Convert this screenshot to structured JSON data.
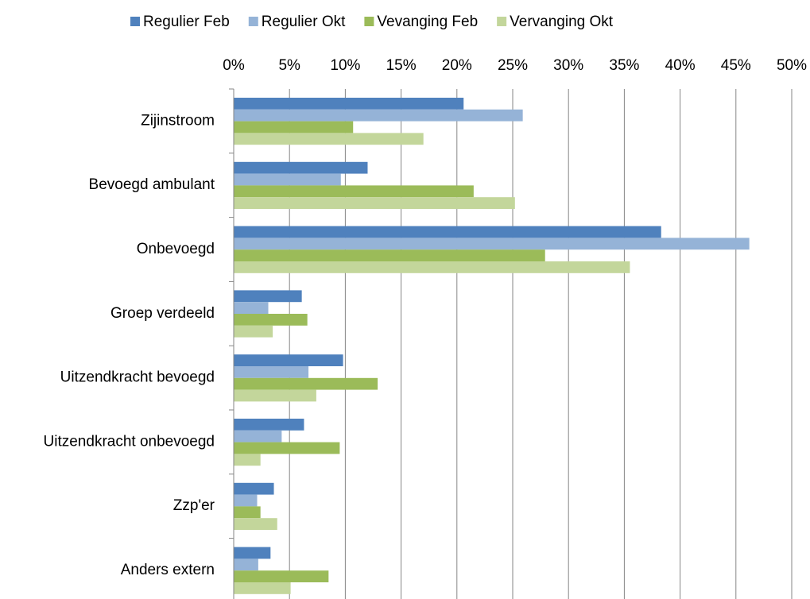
{
  "chart_data": {
    "type": "hbar",
    "categories": [
      "Zijinstroom",
      "Bevoegd ambulant",
      "Onbevoegd",
      "Groep verdeeld",
      "Uitzendkracht bevoegd",
      "Uitzendkracht onbevoegd",
      "Zzp'er",
      "Anders extern"
    ],
    "series": [
      {
        "name": "Regulier Feb",
        "color": "#4f81bd",
        "values": [
          20.6,
          12.0,
          38.3,
          6.1,
          9.8,
          6.3,
          3.6,
          3.3
        ]
      },
      {
        "name": "Regulier Okt",
        "color": "#95b3d7",
        "values": [
          25.9,
          9.6,
          46.2,
          3.1,
          6.7,
          4.3,
          2.1,
          2.2
        ]
      },
      {
        "name": "Vevanging Feb",
        "color": "#9bbb59",
        "values": [
          10.7,
          21.5,
          27.9,
          6.6,
          12.9,
          9.5,
          2.4,
          8.5
        ]
      },
      {
        "name": "Vervanging Okt",
        "color": "#c3d69b",
        "values": [
          17.0,
          25.2,
          35.5,
          3.5,
          7.4,
          2.4,
          3.9,
          5.1
        ]
      }
    ],
    "xlim": [
      0,
      50
    ],
    "xticks": [
      {
        "value": 0,
        "label": "0%"
      },
      {
        "value": 5,
        "label": "5%"
      },
      {
        "value": 10,
        "label": "10%"
      },
      {
        "value": 15,
        "label": "15%"
      },
      {
        "value": 20,
        "label": "20%"
      },
      {
        "value": 25,
        "label": "25%"
      },
      {
        "value": 30,
        "label": "30%"
      },
      {
        "value": 35,
        "label": "35%"
      },
      {
        "value": 40,
        "label": "40%"
      },
      {
        "value": 45,
        "label": "45%"
      },
      {
        "value": 50,
        "label": "50%"
      }
    ],
    "grid": true,
    "legend": "top"
  }
}
